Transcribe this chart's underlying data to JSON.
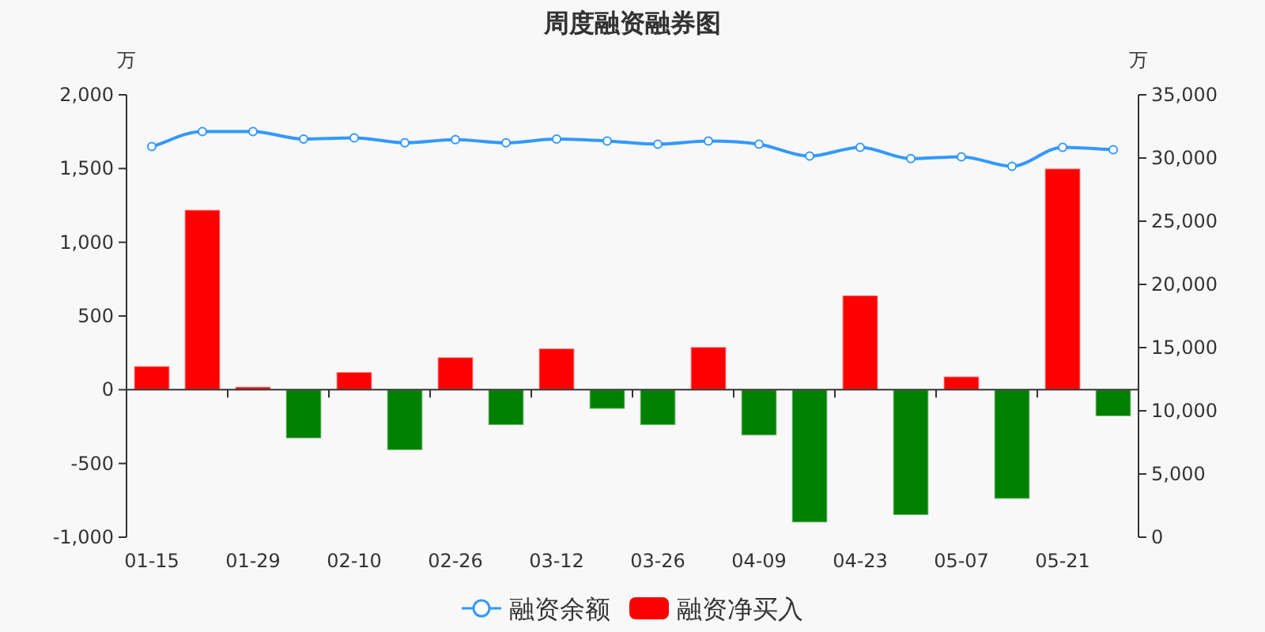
{
  "chart_data": {
    "type": "bar",
    "title": "周度融资融券图",
    "ylabel": "万",
    "y2label": "万",
    "categories": [
      "01-15",
      null,
      "01-29",
      null,
      "02-10",
      null,
      "02-26",
      null,
      "03-12",
      null,
      "03-26",
      null,
      "04-09",
      null,
      "04-23",
      null,
      "05-07",
      null,
      "05-21",
      null
    ],
    "series": [
      {
        "name": "融资余额",
        "type": "line",
        "axis": "y2",
        "color": "#3399ff",
        "marker": "circle",
        "values": [
          30900,
          32100,
          32100,
          31500,
          31600,
          31200,
          31450,
          31200,
          31500,
          31350,
          31100,
          31350,
          31100,
          30150,
          30850,
          29950,
          30100,
          29350,
          30850,
          30650
        ]
      },
      {
        "name": "融资净买入",
        "color": "#ff0000",
        "colors": [
          "#ff0000",
          "#ff0000",
          "#ff0000",
          "#008000",
          "#ff0000",
          "#008000",
          "#ff0000",
          "#008000",
          "#ff0000",
          "#008000",
          "#008000",
          "#ff0000",
          "#008000",
          "#008000",
          "#ff0000",
          "#008000",
          "#ff0000",
          "#008000",
          "#ff0000",
          "#008000"
        ],
        "values": [
          160,
          1220,
          20,
          -330,
          120,
          -410,
          220,
          -240,
          280,
          -130,
          -240,
          290,
          -310,
          -900,
          640,
          -850,
          90,
          -740,
          1500,
          -180
        ]
      }
    ],
    "ylim": [
      -1000,
      2000
    ],
    "yticks": [
      {
        "value": -1000,
        "label": "-1,000"
      },
      {
        "value": -500,
        "label": "-500"
      },
      0,
      500,
      {
        "value": 1000,
        "label": "1,000"
      },
      {
        "value": 1500,
        "label": "1,500"
      },
      {
        "value": 2000,
        "label": "2,000"
      }
    ],
    "y2lim": [
      0,
      35000
    ],
    "y2ticks": [
      0,
      {
        "value": 5000,
        "label": "5,000"
      },
      {
        "value": 10000,
        "label": "10,000"
      },
      {
        "value": 15000,
        "label": "15,000"
      },
      {
        "value": 20000,
        "label": "20,000"
      },
      {
        "value": 25000,
        "label": "25,000"
      },
      {
        "value": 30000,
        "label": "30,000"
      },
      {
        "value": 35000,
        "label": "35,000"
      }
    ],
    "legend": "bottom"
  }
}
